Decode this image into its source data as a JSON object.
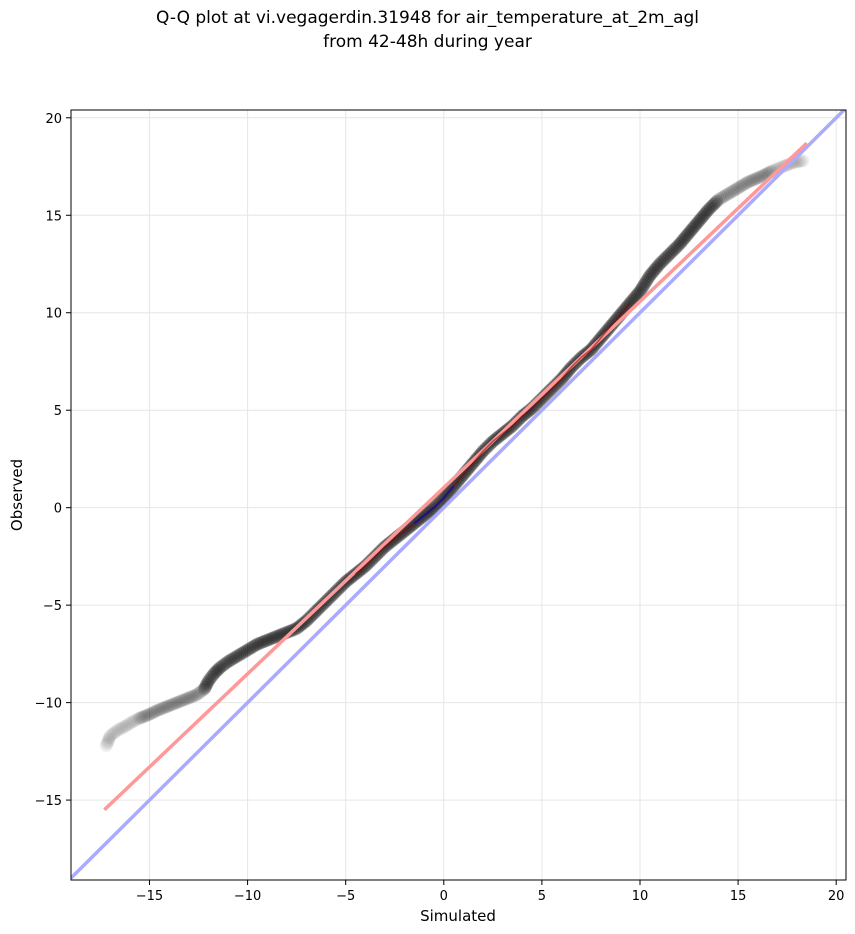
{
  "chart_data": {
    "type": "scatter",
    "title_line1": "Q-Q plot at vi.vegagerdin.31948 for air_temperature_at_2m_agl",
    "title_line2": "from 42-48h during year",
    "xlabel": "Simulated",
    "ylabel": "Observed",
    "xlim": [
      -19.0,
      20.5
    ],
    "ylim": [
      -19.1,
      20.4
    ],
    "xticks": [
      -15,
      -10,
      -5,
      0,
      5,
      10,
      15,
      20
    ],
    "yticks": [
      -15,
      -10,
      -5,
      0,
      5,
      10,
      15,
      20
    ],
    "xtick_labels": [
      "−15",
      "−10",
      "−5",
      "0",
      "5",
      "10",
      "15",
      "20"
    ],
    "ytick_labels": [
      "−15",
      "−10",
      "−5",
      "0",
      "5",
      "10",
      "15",
      "20"
    ],
    "grid": true,
    "quantile_points": [
      [
        -17.2,
        -12.2
      ],
      [
        -17.0,
        -11.7
      ],
      [
        -16.6,
        -11.4
      ],
      [
        -16.2,
        -11.2
      ],
      [
        -15.9,
        -11.0
      ],
      [
        -15.5,
        -10.8
      ],
      [
        -15.0,
        -10.6
      ],
      [
        -14.6,
        -10.4
      ],
      [
        -14.1,
        -10.2
      ],
      [
        -13.6,
        -10.0
      ],
      [
        -13.1,
        -9.8
      ],
      [
        -12.6,
        -9.6
      ],
      [
        -12.2,
        -9.3
      ],
      [
        -12.0,
        -8.9
      ],
      [
        -11.7,
        -8.5
      ],
      [
        -11.4,
        -8.2
      ],
      [
        -11.0,
        -7.9
      ],
      [
        -10.5,
        -7.6
      ],
      [
        -10.0,
        -7.3
      ],
      [
        -9.5,
        -7.0
      ],
      [
        -9.0,
        -6.8
      ],
      [
        -8.5,
        -6.6
      ],
      [
        -8.0,
        -6.4
      ],
      [
        -7.5,
        -6.2
      ],
      [
        -7.0,
        -5.8
      ],
      [
        -6.5,
        -5.3
      ],
      [
        -6.0,
        -4.8
      ],
      [
        -5.5,
        -4.3
      ],
      [
        -5.0,
        -3.8
      ],
      [
        -4.5,
        -3.4
      ],
      [
        -4.0,
        -3.0
      ],
      [
        -3.5,
        -2.5
      ],
      [
        -3.0,
        -2.0
      ],
      [
        -2.5,
        -1.6
      ],
      [
        -2.0,
        -1.2
      ],
      [
        -1.5,
        -0.8
      ],
      [
        -1.0,
        -0.4
      ],
      [
        -0.5,
        0.0
      ],
      [
        0.0,
        0.5
      ],
      [
        0.5,
        1.1
      ],
      [
        1.0,
        1.7
      ],
      [
        1.5,
        2.3
      ],
      [
        2.0,
        2.9
      ],
      [
        2.5,
        3.4
      ],
      [
        3.0,
        3.8
      ],
      [
        3.5,
        4.2
      ],
      [
        4.0,
        4.7
      ],
      [
        4.5,
        5.1
      ],
      [
        5.0,
        5.6
      ],
      [
        5.5,
        6.1
      ],
      [
        6.0,
        6.6
      ],
      [
        6.5,
        7.2
      ],
      [
        7.0,
        7.7
      ],
      [
        7.5,
        8.1
      ],
      [
        8.0,
        8.7
      ],
      [
        8.5,
        9.3
      ],
      [
        9.0,
        9.9
      ],
      [
        9.5,
        10.5
      ],
      [
        10.0,
        11.1
      ],
      [
        10.5,
        11.9
      ],
      [
        11.0,
        12.5
      ],
      [
        11.5,
        13.0
      ],
      [
        12.0,
        13.5
      ],
      [
        12.5,
        14.1
      ],
      [
        13.0,
        14.7
      ],
      [
        13.5,
        15.3
      ],
      [
        14.0,
        15.8
      ],
      [
        14.5,
        16.1
      ],
      [
        15.0,
        16.4
      ],
      [
        15.5,
        16.7
      ],
      [
        16.2,
        17.0
      ],
      [
        16.8,
        17.3
      ],
      [
        17.3,
        17.5
      ],
      [
        17.8,
        17.7
      ],
      [
        18.3,
        17.8
      ]
    ],
    "fit_line": {
      "color": "#ff9999",
      "x": [
        -17.3,
        18.5
      ],
      "y": [
        -15.5,
        18.7
      ]
    },
    "identity_line": {
      "color": "#aaaaff",
      "x": [
        -19.0,
        20.5
      ],
      "y": [
        -19.0,
        20.5
      ]
    },
    "point_color": "#000000",
    "core_trace_colors": [
      "#8b0000",
      "#0000cc"
    ]
  }
}
